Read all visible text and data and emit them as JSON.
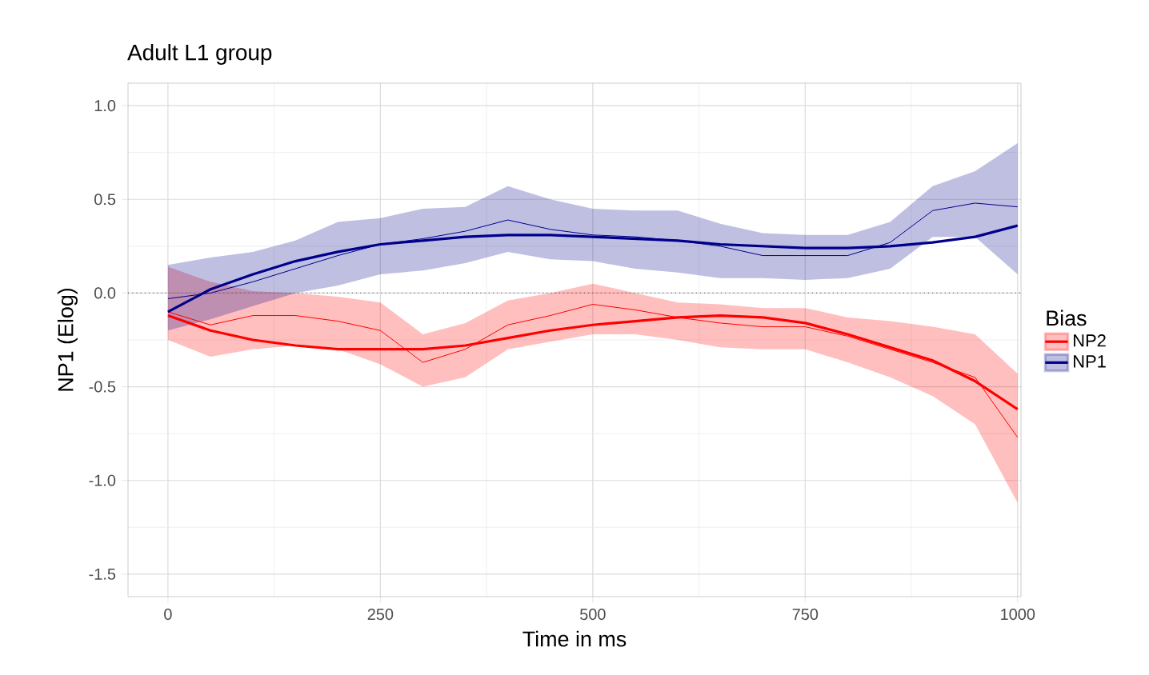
{
  "chart_data": {
    "type": "line",
    "title": "Adult L1 group",
    "xlabel": "Time in ms",
    "ylabel": "NP1 (Elog)",
    "legend_title": "Bias",
    "x": [
      0,
      50,
      100,
      150,
      200,
      250,
      300,
      350,
      400,
      450,
      500,
      550,
      600,
      650,
      700,
      750,
      800,
      850,
      900,
      950,
      1000
    ],
    "series": [
      {
        "name": "NP2",
        "color": "#ff0000",
        "values": [
          -0.1,
          -0.17,
          -0.12,
          -0.12,
          -0.15,
          -0.2,
          -0.37,
          -0.3,
          -0.17,
          -0.12,
          -0.06,
          -0.09,
          -0.13,
          -0.16,
          -0.18,
          -0.18,
          -0.23,
          -0.3,
          -0.37,
          -0.45,
          -0.77
        ],
        "lower": [
          -0.25,
          -0.34,
          -0.3,
          -0.28,
          -0.3,
          -0.38,
          -0.5,
          -0.45,
          -0.3,
          -0.26,
          -0.22,
          -0.22,
          -0.25,
          -0.29,
          -0.3,
          -0.3,
          -0.37,
          -0.45,
          -0.55,
          -0.7,
          -1.12
        ],
        "upper": [
          0.14,
          0.06,
          0.01,
          0.0,
          -0.02,
          -0.05,
          -0.22,
          -0.16,
          -0.04,
          0.0,
          0.05,
          0.0,
          -0.05,
          -0.06,
          -0.08,
          -0.08,
          -0.13,
          -0.15,
          -0.18,
          -0.22,
          -0.43
        ]
      },
      {
        "name": "NP1",
        "color": "#00008b",
        "values": [
          -0.03,
          0.0,
          0.06,
          0.13,
          0.2,
          0.26,
          0.29,
          0.33,
          0.39,
          0.34,
          0.31,
          0.3,
          0.28,
          0.25,
          0.2,
          0.2,
          0.2,
          0.27,
          0.44,
          0.48,
          0.46
        ],
        "lower": [
          -0.2,
          -0.14,
          -0.07,
          0.0,
          0.04,
          0.1,
          0.12,
          0.16,
          0.22,
          0.18,
          0.17,
          0.13,
          0.11,
          0.08,
          0.08,
          0.07,
          0.08,
          0.13,
          0.3,
          0.3,
          0.1
        ],
        "upper": [
          0.15,
          0.19,
          0.22,
          0.28,
          0.38,
          0.4,
          0.45,
          0.46,
          0.57,
          0.5,
          0.45,
          0.44,
          0.44,
          0.37,
          0.32,
          0.31,
          0.31,
          0.38,
          0.57,
          0.65,
          0.8
        ]
      },
      {
        "color": "#ff0000",
        "values": [
          -0.12,
          -0.2,
          -0.25,
          -0.28,
          -0.3,
          -0.3,
          -0.3,
          -0.28,
          -0.24,
          -0.2,
          -0.17,
          -0.15,
          -0.13,
          -0.12,
          -0.13,
          -0.16,
          -0.22,
          -0.29,
          -0.36,
          -0.47,
          -0.62
        ]
      },
      {
        "color": "#00008b",
        "values": [
          -0.1,
          0.02,
          0.1,
          0.17,
          0.22,
          0.26,
          0.28,
          0.3,
          0.31,
          0.31,
          0.3,
          0.29,
          0.28,
          0.26,
          0.25,
          0.24,
          0.24,
          0.25,
          0.27,
          0.3,
          0.36
        ]
      }
    ],
    "xlim": [
      -47,
      1004
    ],
    "ylim": [
      -1.62,
      1.12
    ],
    "xticks": [
      0,
      250,
      500,
      750,
      1000
    ],
    "yticks": [
      {
        "value": -1.5,
        "label": "-1.5"
      },
      {
        "value": -1.0,
        "label": "-1.0"
      },
      {
        "value": -0.5,
        "label": "-0.5"
      },
      {
        "value": 0.0,
        "label": "0.0"
      },
      {
        "value": 0.5,
        "label": "0.5"
      },
      {
        "value": 1.0,
        "label": "1.0"
      }
    ],
    "ref_lines": [
      {
        "axis": "y",
        "value": 0,
        "color": "#666666",
        "line_style": "dotted"
      }
    ],
    "grid": true,
    "legend": "right",
    "marker": "none",
    "line_style": "solid"
  }
}
